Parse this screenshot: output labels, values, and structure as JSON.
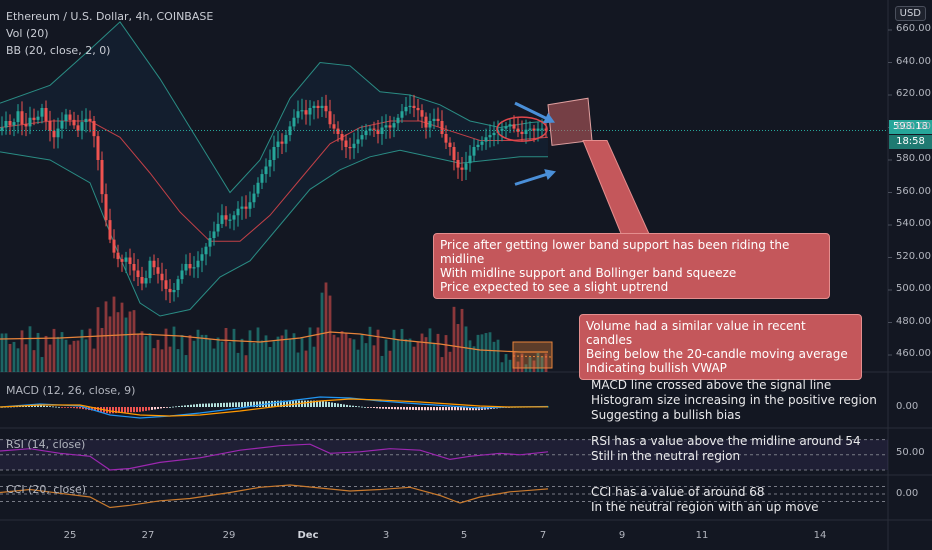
{
  "header": {
    "symbol_line": "Ethereum / U.S. Dollar, 4h, COINBASE",
    "vol_label": "Vol (20)",
    "bb_label": "BB (20, close, 2, 0)"
  },
  "toolbar": {
    "currency_button": "USD"
  },
  "price_axis": {
    "ticks": [
      "660.00",
      "640.00",
      "620.00",
      "600.00",
      "580.00",
      "560.00",
      "540.00",
      "520.00",
      "500.00",
      "480.00",
      "460.00"
    ],
    "current_price": "598.18",
    "countdown": "18:58"
  },
  "time_axis": {
    "ticks": [
      "25",
      "27",
      "29",
      "Dec",
      "3",
      "5",
      "7",
      "9",
      "11",
      "14"
    ]
  },
  "colors": {
    "bull": "#26a69a",
    "bear": "#ef5350",
    "band": "#2a8c84",
    "basis": "#e0464b",
    "volume_ma": "#e8833a",
    "macd": "#2196f3",
    "signal": "#ff9800",
    "rsi": "#9c27b0",
    "cci": "#c97a2e",
    "callout_bg": "#c4575b",
    "arrow": "#4a8fd8"
  },
  "callouts": {
    "price": {
      "lines": [
        "Price after getting lower band support has been riding the midline",
        "With midline support and Bollinger band squeeze",
        "Price expected to see a slight uptrend"
      ]
    },
    "volume": {
      "lines": [
        "Volume had a similar value in recent candles",
        "Being below the 20-candle moving average",
        "Indicating bullish VWAP"
      ]
    }
  },
  "panes": {
    "macd": {
      "label": "MACD (12, 26, close, 9)",
      "axis_value": "0.00",
      "notes": [
        "MACD line crossed above the signal line",
        "Histogram size increasing in the positive region",
        "Suggesting a bullish bias"
      ]
    },
    "rsi": {
      "label": "RSI (14, close)",
      "axis_value": "50.00",
      "notes": [
        "RSI has a value above the midline around 54",
        "Still in the neutral region"
      ]
    },
    "cci": {
      "label": "CCI (20, close)",
      "axis_value": "0.00",
      "notes": [
        "CCI has a value of around 68",
        "In the neutral region with an up move"
      ]
    }
  },
  "chart_data": {
    "type": "candlestick",
    "title": "Ethereum / U.S. Dollar, 4h, COINBASE",
    "ylim": [
      445,
      665
    ],
    "close_path": [
      [
        0,
        598
      ],
      [
        6,
        604
      ],
      [
        12,
        600
      ],
      [
        18,
        610
      ],
      [
        24,
        598
      ],
      [
        30,
        606
      ],
      [
        36,
        604
      ],
      [
        42,
        612
      ],
      [
        48,
        600
      ],
      [
        54,
        594
      ],
      [
        60,
        602
      ],
      [
        66,
        608
      ],
      [
        72,
        603
      ],
      [
        78,
        598
      ],
      [
        84,
        606
      ],
      [
        90,
        604
      ],
      [
        96,
        590
      ],
      [
        100,
        570
      ],
      [
        104,
        548
      ],
      [
        108,
        538
      ],
      [
        112,
        524
      ],
      [
        116,
        522
      ],
      [
        120,
        516
      ],
      [
        126,
        520
      ],
      [
        132,
        514
      ],
      [
        138,
        508
      ],
      [
        144,
        502
      ],
      [
        150,
        518
      ],
      [
        156,
        512
      ],
      [
        162,
        506
      ],
      [
        168,
        498
      ],
      [
        174,
        500
      ],
      [
        180,
        510
      ],
      [
        186,
        516
      ],
      [
        192,
        512
      ],
      [
        198,
        518
      ],
      [
        204,
        524
      ],
      [
        210,
        532
      ],
      [
        216,
        538
      ],
      [
        222,
        546
      ],
      [
        228,
        542
      ],
      [
        234,
        546
      ],
      [
        240,
        552
      ],
      [
        246,
        550
      ],
      [
        252,
        556
      ],
      [
        258,
        566
      ],
      [
        264,
        574
      ],
      [
        270,
        580
      ],
      [
        276,
        592
      ],
      [
        282,
        590
      ],
      [
        288,
        598
      ],
      [
        294,
        606
      ],
      [
        300,
        612
      ],
      [
        306,
        608
      ],
      [
        312,
        614
      ],
      [
        318,
        612
      ],
      [
        324,
        614
      ],
      [
        330,
        602
      ],
      [
        336,
        598
      ],
      [
        342,
        592
      ],
      [
        348,
        586
      ],
      [
        354,
        590
      ],
      [
        360,
        594
      ],
      [
        366,
        598
      ],
      [
        372,
        600
      ],
      [
        378,
        596
      ],
      [
        384,
        602
      ],
      [
        390,
        600
      ],
      [
        396,
        604
      ],
      [
        402,
        610
      ],
      [
        408,
        614
      ],
      [
        414,
        612
      ],
      [
        420,
        610
      ],
      [
        426,
        600
      ],
      [
        432,
        606
      ],
      [
        438,
        604
      ],
      [
        444,
        592
      ],
      [
        450,
        588
      ],
      [
        456,
        576
      ],
      [
        462,
        574
      ],
      [
        468,
        580
      ],
      [
        474,
        588
      ],
      [
        480,
        590
      ],
      [
        486,
        594
      ],
      [
        492,
        596
      ],
      [
        498,
        598
      ],
      [
        504,
        600
      ],
      [
        510,
        602
      ],
      [
        516,
        598
      ],
      [
        522,
        596
      ],
      [
        528,
        600
      ],
      [
        534,
        598
      ],
      [
        540,
        600
      ],
      [
        546,
        598
      ]
    ],
    "upper_band": [
      [
        0,
        615
      ],
      [
        50,
        626
      ],
      [
        90,
        648
      ],
      [
        120,
        665
      ],
      [
        160,
        630
      ],
      [
        200,
        590
      ],
      [
        230,
        560
      ],
      [
        260,
        580
      ],
      [
        290,
        618
      ],
      [
        320,
        640
      ],
      [
        350,
        638
      ],
      [
        380,
        622
      ],
      [
        410,
        620
      ],
      [
        440,
        614
      ],
      [
        470,
        604
      ],
      [
        500,
        600
      ],
      [
        530,
        603
      ],
      [
        548,
        604
      ]
    ],
    "lower_band": [
      [
        0,
        585
      ],
      [
        50,
        580
      ],
      [
        90,
        566
      ],
      [
        120,
        520
      ],
      [
        140,
        492
      ],
      [
        160,
        484
      ],
      [
        190,
        488
      ],
      [
        220,
        508
      ],
      [
        250,
        518
      ],
      [
        280,
        540
      ],
      [
        310,
        562
      ],
      [
        340,
        574
      ],
      [
        370,
        582
      ],
      [
        400,
        586
      ],
      [
        430,
        582
      ],
      [
        460,
        578
      ],
      [
        490,
        580
      ],
      [
        520,
        582
      ],
      [
        548,
        582
      ]
    ],
    "basis": [
      [
        0,
        600
      ],
      [
        50,
        604
      ],
      [
        90,
        604
      ],
      [
        120,
        594
      ],
      [
        150,
        572
      ],
      [
        180,
        548
      ],
      [
        210,
        530
      ],
      [
        240,
        530
      ],
      [
        270,
        546
      ],
      [
        300,
        568
      ],
      [
        330,
        590
      ],
      [
        360,
        600
      ],
      [
        390,
        604
      ],
      [
        420,
        604
      ],
      [
        450,
        598
      ],
      [
        480,
        592
      ],
      [
        510,
        592
      ],
      [
        548,
        594
      ]
    ],
    "volume_ma_path": [
      [
        0,
        33
      ],
      [
        60,
        34
      ],
      [
        100,
        36
      ],
      [
        140,
        38
      ],
      [
        180,
        36
      ],
      [
        220,
        32
      ],
      [
        260,
        30
      ],
      [
        300,
        34
      ],
      [
        330,
        40
      ],
      [
        360,
        38
      ],
      [
        400,
        32
      ],
      [
        440,
        28
      ],
      [
        480,
        22
      ],
      [
        520,
        20
      ],
      [
        548,
        20
      ]
    ],
    "volume_projection": {
      "from": 598,
      "to": 602
    },
    "macd": {
      "macd_line": [
        [
          0,
          0
        ],
        [
          40,
          0.3
        ],
        [
          80,
          0.1
        ],
        [
          110,
          -0.8
        ],
        [
          140,
          -1.1
        ],
        [
          170,
          -0.9
        ],
        [
          200,
          -0.6
        ],
        [
          240,
          -0.1
        ],
        [
          280,
          0.5
        ],
        [
          320,
          1.0
        ],
        [
          350,
          0.9
        ],
        [
          380,
          0.6
        ],
        [
          420,
          0.3
        ],
        [
          450,
          0.1
        ],
        [
          480,
          -0.1
        ],
        [
          510,
          0.0
        ],
        [
          548,
          0.05
        ]
      ],
      "signal_line": [
        [
          0,
          0
        ],
        [
          40,
          0.2
        ],
        [
          80,
          0.2
        ],
        [
          110,
          -0.4
        ],
        [
          140,
          -0.8
        ],
        [
          170,
          -0.9
        ],
        [
          200,
          -0.8
        ],
        [
          240,
          -0.4
        ],
        [
          280,
          0.1
        ],
        [
          320,
          0.6
        ],
        [
          350,
          0.8
        ],
        [
          380,
          0.7
        ],
        [
          420,
          0.5
        ],
        [
          450,
          0.3
        ],
        [
          480,
          0.1
        ],
        [
          510,
          0.0
        ],
        [
          548,
          0.02
        ]
      ]
    },
    "rsi": {
      "levels": [
        70,
        50,
        30
      ],
      "path": [
        [
          0,
          55
        ],
        [
          30,
          58
        ],
        [
          60,
          52
        ],
        [
          90,
          48
        ],
        [
          110,
          30
        ],
        [
          130,
          32
        ],
        [
          160,
          40
        ],
        [
          200,
          46
        ],
        [
          240,
          56
        ],
        [
          280,
          62
        ],
        [
          310,
          64
        ],
        [
          330,
          52
        ],
        [
          360,
          54
        ],
        [
          390,
          58
        ],
        [
          420,
          56
        ],
        [
          450,
          44
        ],
        [
          470,
          48
        ],
        [
          500,
          52
        ],
        [
          520,
          50
        ],
        [
          548,
          54
        ]
      ]
    },
    "cci": {
      "levels": [
        100,
        0,
        -100
      ],
      "path": [
        [
          0,
          20
        ],
        [
          30,
          60
        ],
        [
          60,
          10
        ],
        [
          90,
          -40
        ],
        [
          110,
          -180
        ],
        [
          130,
          -150
        ],
        [
          160,
          -90
        ],
        [
          190,
          -60
        ],
        [
          230,
          20
        ],
        [
          260,
          90
        ],
        [
          290,
          120
        ],
        [
          320,
          80
        ],
        [
          350,
          40
        ],
        [
          380,
          60
        ],
        [
          410,
          90
        ],
        [
          440,
          -20
        ],
        [
          460,
          -120
        ],
        [
          480,
          -40
        ],
        [
          510,
          30
        ],
        [
          530,
          50
        ],
        [
          548,
          68
        ]
      ]
    }
  }
}
